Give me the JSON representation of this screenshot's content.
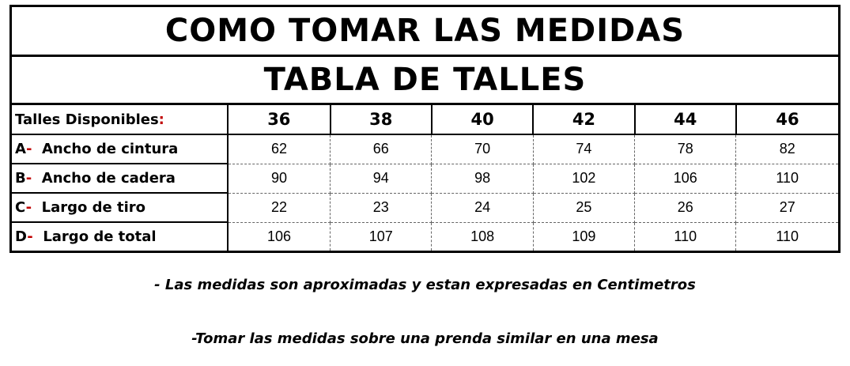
{
  "title": "COMO TOMAR LAS MEDIDAS",
  "subtitle": "TABLA DE TALLES",
  "header": {
    "label": "Talles Disponibles",
    "colon": ":",
    "sizes": [
      "36",
      "38",
      "40",
      "42",
      "44",
      "46"
    ]
  },
  "rows": [
    {
      "letter": "A",
      "dash": "-",
      "label": "Ancho de cintura",
      "values": [
        "62",
        "66",
        "70",
        "74",
        "78",
        "82"
      ]
    },
    {
      "letter": "B",
      "dash": "-",
      "label": "Ancho de cadera",
      "values": [
        "90",
        "94",
        "98",
        "102",
        "106",
        "110"
      ]
    },
    {
      "letter": "C",
      "dash": "-",
      "label": "Largo de tiro",
      "values": [
        "22",
        "23",
        "24",
        "25",
        "26",
        "27"
      ]
    },
    {
      "letter": "D",
      "dash": "-",
      "label": "Largo de total",
      "values": [
        "106",
        "107",
        "108",
        "109",
        "110",
        "110"
      ]
    }
  ],
  "notes": [
    "- Las medidas son aproximadas y estan expresadas en Centimetros",
    "-Tomar las medidas sobre una prenda similar en una mesa"
  ],
  "colors": {
    "accent": "#c00000"
  }
}
